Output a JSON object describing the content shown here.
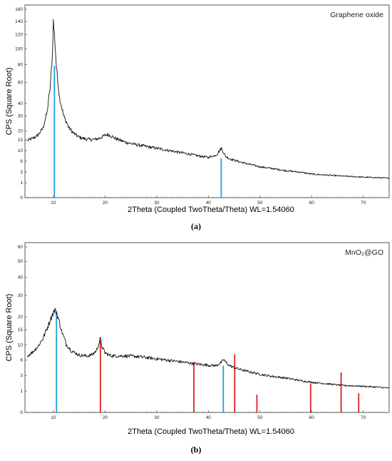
{
  "chart_data": [
    {
      "panel": "(a)",
      "type": "line",
      "legend_text": "Graphene oxide",
      "xlabel": "2Theta (Coupled TwoTheta/Theta) WL=1.54060",
      "ylabel": "CPS (Square Root)",
      "xlim": [
        4.5,
        75
      ],
      "x_ticks": [
        10,
        20,
        30,
        40,
        50,
        60,
        70
      ],
      "y_ticks": [
        0,
        1,
        3,
        6,
        10,
        15,
        20,
        30,
        40,
        60,
        80,
        100,
        120,
        140,
        160
      ],
      "y_scale": "square-root",
      "series": [
        {
          "x": [
            5,
            6,
            7,
            8,
            8.8,
            9.4,
            9.8,
            10.0,
            10.2,
            10.6,
            11.2,
            12,
            13,
            14,
            15,
            16,
            17,
            18,
            19,
            20,
            20.5,
            21,
            22,
            24,
            26,
            28,
            30,
            32,
            34,
            36,
            38,
            40,
            41.5,
            42.2,
            42.5,
            42.8,
            43.3,
            44,
            46,
            48,
            50,
            52,
            55,
            58,
            60,
            63,
            66,
            70,
            73,
            75
          ],
          "y": [
            14.8,
            15.8,
            17.6,
            21.7,
            33,
            55,
            90,
            140,
            121,
            75,
            45,
            30,
            22,
            18.5,
            16.5,
            15.7,
            15.2,
            15.3,
            16,
            17.5,
            18,
            17.5,
            15.8,
            13.8,
            12.7,
            11.8,
            11,
            10.2,
            9.4,
            8.7,
            7.9,
            7.3,
            8.2,
            10,
            11.1,
            9.8,
            7.8,
            6.9,
            5.8,
            5,
            4.3,
            3.9,
            3.3,
            2.9,
            2.5,
            2.3,
            2.1,
            1.9,
            1.8,
            1.7
          ]
        }
      ],
      "reference_lines": [
        {
          "x": 10.2,
          "y": 78,
          "color": "#1ba3d8"
        },
        {
          "x": 42.5,
          "y": 7,
          "color": "#1ba3d8"
        }
      ]
    },
    {
      "panel": "(b)",
      "type": "line",
      "legend_text": "MnO₂@GO",
      "xlabel": "2Theta (Coupled TwoTheta/Theta) WL=1.54060",
      "ylabel": "CPS (Square Root)",
      "xlim": [
        4.5,
        75
      ],
      "x_ticks": [
        10,
        20,
        30,
        40,
        50,
        60,
        70
      ],
      "y_ticks": [
        0,
        1,
        3,
        6,
        10,
        15,
        20,
        30,
        40,
        50,
        60
      ],
      "y_scale": "square-root",
      "series": [
        {
          "x": [
            5,
            6,
            7,
            8,
            9,
            9.8,
            10.3,
            10.6,
            11,
            11.6,
            12.5,
            13.5,
            15,
            16.5,
            17.5,
            18.3,
            18.8,
            19.1,
            19.4,
            20,
            21,
            22,
            24,
            26,
            28,
            30,
            32,
            34,
            36,
            38,
            40,
            41.5,
            42.5,
            43,
            43.6,
            44.5,
            46,
            48,
            50,
            52,
            55,
            58,
            60,
            63,
            66,
            70,
            73,
            75
          ],
          "y": [
            7,
            8,
            9.5,
            12,
            16.5,
            21,
            23,
            22,
            19,
            14.5,
            10.2,
            8.3,
            7.2,
            7,
            7.3,
            8.3,
            10.3,
            12,
            9.5,
            7.8,
            7.1,
            7,
            7,
            6.9,
            6.6,
            6.3,
            6,
            5.7,
            5.4,
            5.1,
            4.9,
            4.8,
            5.5,
            6.1,
            5.2,
            4.6,
            4.1,
            3.6,
            3.2,
            2.9,
            2.6,
            2.2,
            2,
            1.8,
            1.6,
            1.5,
            1.4,
            1.3
          ]
        }
      ],
      "reference_lines": [
        {
          "x": 10.6,
          "y": 22.5,
          "color": "#1ba3d8"
        },
        {
          "x": 19.1,
          "y": 11.5,
          "color": "#e02020"
        },
        {
          "x": 37.2,
          "y": 5.5,
          "color": "#e02020"
        },
        {
          "x": 42.9,
          "y": 4.8,
          "color": "#1ba3d8"
        },
        {
          "x": 45.1,
          "y": 7.4,
          "color": "#e02020"
        },
        {
          "x": 49.4,
          "y": 0.7,
          "color": "#e02020"
        },
        {
          "x": 59.8,
          "y": 1.8,
          "color": "#e02020"
        },
        {
          "x": 65.7,
          "y": 3.5,
          "color": "#e02020"
        },
        {
          "x": 69.1,
          "y": 0.8,
          "color": "#e02020"
        }
      ]
    }
  ]
}
